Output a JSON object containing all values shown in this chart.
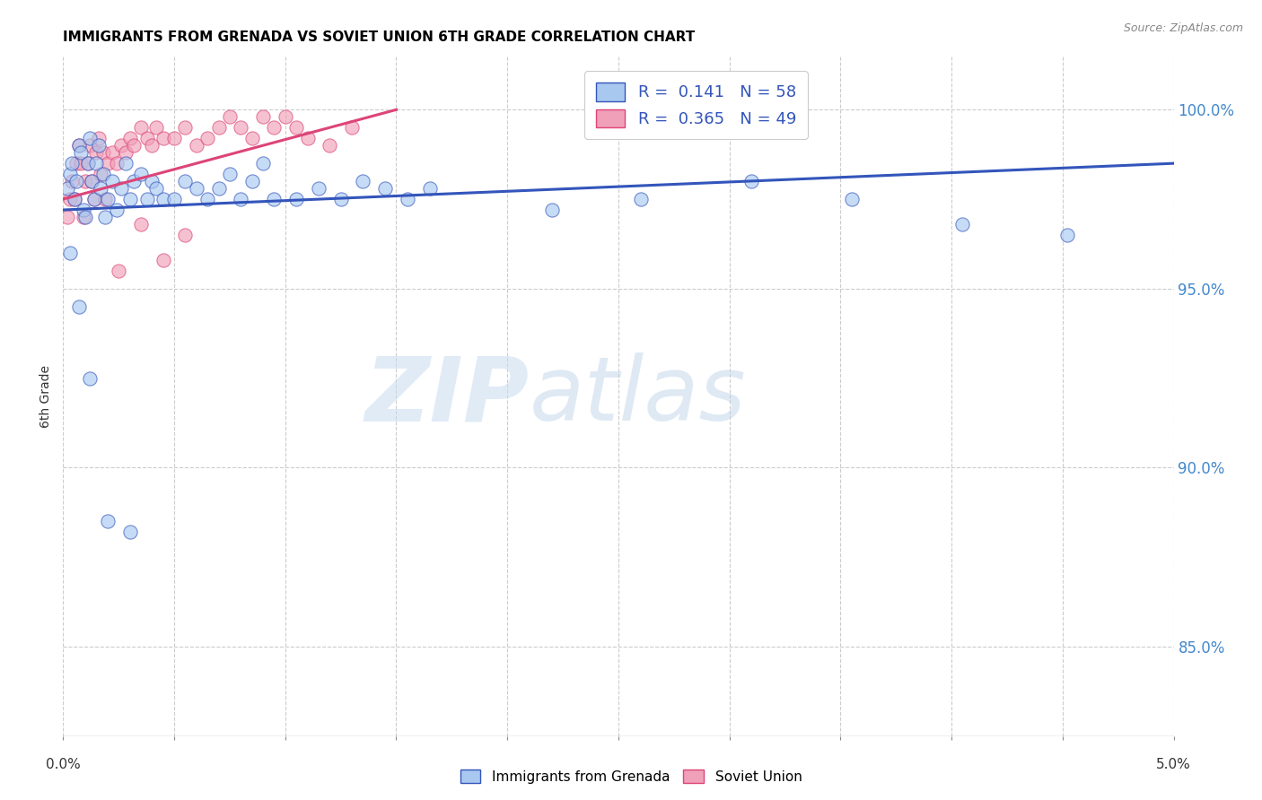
{
  "title": "IMMIGRANTS FROM GRENADA VS SOVIET UNION 6TH GRADE CORRELATION CHART",
  "source": "Source: ZipAtlas.com",
  "ylabel": "6th Grade",
  "yticks": [
    85.0,
    90.0,
    95.0,
    100.0
  ],
  "xlim": [
    0.0,
    5.0
  ],
  "ylim": [
    82.5,
    101.5
  ],
  "r1": 0.141,
  "n1": 58,
  "r2": 0.365,
  "n2": 49,
  "color_grenada": "#A8C8F0",
  "color_soviet": "#F0A0B8",
  "color_line_grenada": "#3355BB",
  "color_line_soviet": "#DD4477",
  "background": "#FFFFFF",
  "watermark_zip": "ZIP",
  "watermark_atlas": "atlas",
  "grenada_x": [
    0.02,
    0.03,
    0.04,
    0.05,
    0.06,
    0.07,
    0.08,
    0.09,
    0.1,
    0.11,
    0.12,
    0.13,
    0.14,
    0.15,
    0.16,
    0.17,
    0.18,
    0.19,
    0.2,
    0.22,
    0.24,
    0.26,
    0.28,
    0.3,
    0.32,
    0.35,
    0.38,
    0.4,
    0.42,
    0.45,
    0.5,
    0.55,
    0.6,
    0.65,
    0.7,
    0.75,
    0.8,
    0.85,
    0.9,
    0.95,
    1.05,
    1.15,
    1.25,
    1.35,
    1.45,
    1.55,
    1.65,
    2.2,
    2.6,
    3.1,
    3.55,
    4.05,
    4.52,
    0.03,
    0.07,
    0.12,
    0.2,
    0.3
  ],
  "grenada_y": [
    97.8,
    98.2,
    98.5,
    97.5,
    98.0,
    99.0,
    98.8,
    97.2,
    97.0,
    98.5,
    99.2,
    98.0,
    97.5,
    98.5,
    99.0,
    97.8,
    98.2,
    97.0,
    97.5,
    98.0,
    97.2,
    97.8,
    98.5,
    97.5,
    98.0,
    98.2,
    97.5,
    98.0,
    97.8,
    97.5,
    97.5,
    98.0,
    97.8,
    97.5,
    97.8,
    98.2,
    97.5,
    98.0,
    98.5,
    97.5,
    97.5,
    97.8,
    97.5,
    98.0,
    97.8,
    97.5,
    97.8,
    97.2,
    97.5,
    98.0,
    97.5,
    96.8,
    96.5,
    96.0,
    94.5,
    92.5,
    88.5,
    88.2
  ],
  "soviet_x": [
    0.02,
    0.03,
    0.04,
    0.05,
    0.06,
    0.07,
    0.08,
    0.09,
    0.1,
    0.11,
    0.12,
    0.13,
    0.14,
    0.15,
    0.16,
    0.17,
    0.18,
    0.19,
    0.2,
    0.22,
    0.24,
    0.26,
    0.28,
    0.3,
    0.32,
    0.35,
    0.38,
    0.4,
    0.42,
    0.45,
    0.5,
    0.55,
    0.6,
    0.65,
    0.7,
    0.75,
    0.8,
    0.85,
    0.9,
    0.95,
    1.0,
    1.05,
    1.1,
    1.2,
    1.3,
    0.25,
    0.35,
    0.45,
    0.55
  ],
  "soviet_y": [
    97.0,
    97.5,
    98.0,
    97.5,
    98.5,
    99.0,
    98.5,
    97.0,
    98.0,
    98.5,
    99.0,
    98.0,
    97.5,
    98.8,
    99.2,
    98.2,
    98.8,
    97.5,
    98.5,
    98.8,
    98.5,
    99.0,
    98.8,
    99.2,
    99.0,
    99.5,
    99.2,
    99.0,
    99.5,
    99.2,
    99.2,
    99.5,
    99.0,
    99.2,
    99.5,
    99.8,
    99.5,
    99.2,
    99.8,
    99.5,
    99.8,
    99.5,
    99.2,
    99.0,
    99.5,
    95.5,
    96.8,
    95.8,
    96.5
  ],
  "line_gren_x0": 0.0,
  "line_gren_x1": 5.0,
  "line_gren_y0": 97.2,
  "line_gren_y1": 98.5,
  "line_sov_x0": 0.0,
  "line_sov_x1": 1.5,
  "line_sov_y0": 97.5,
  "line_sov_y1": 100.0
}
